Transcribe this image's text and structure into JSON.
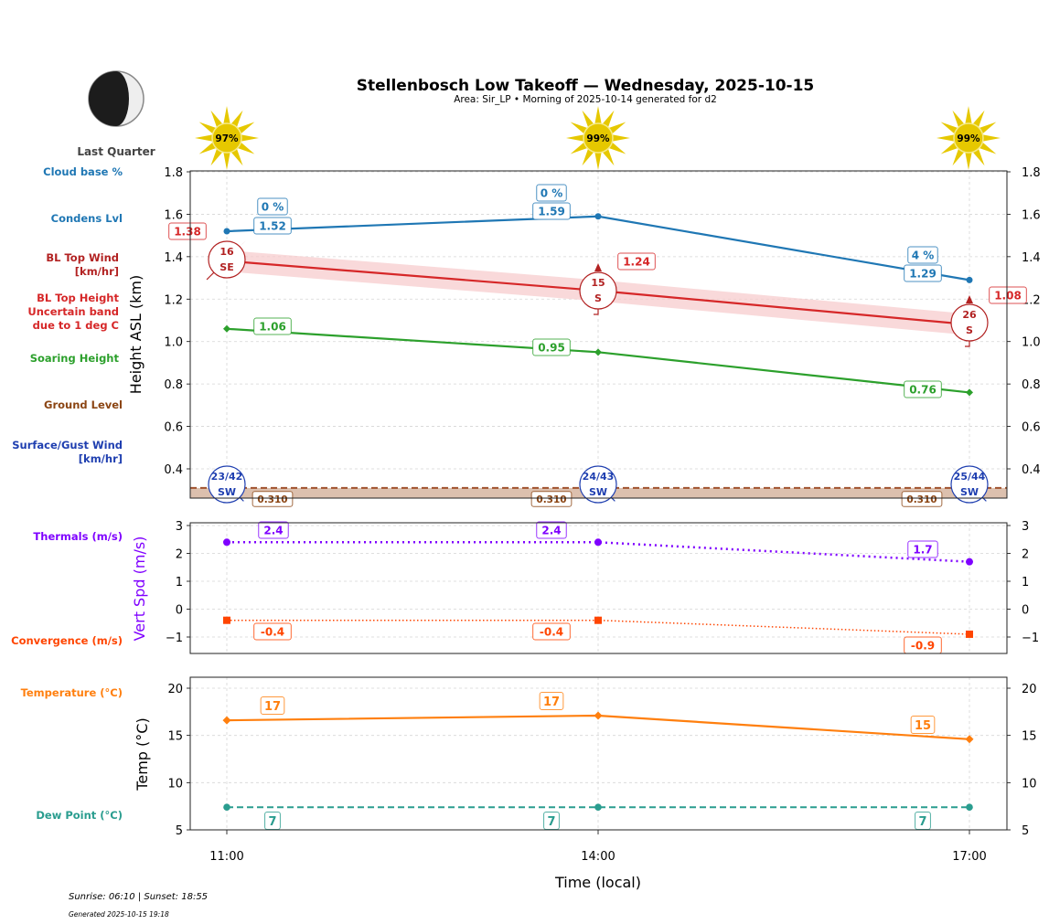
{
  "header": {
    "title": "Stellenbosch Low Takeoff — Wednesday, 2025-10-15",
    "subtitle": "Area: Sir_LP • Morning of 2025-10-14 generated for d2",
    "moon_phase": "Last Quarter",
    "moon_icon": "moon-last-quarter-icon"
  },
  "footer": {
    "sun_times": "Sunrise: 06:10 | Sunset: 18:55",
    "generated": "Generated 2025-10-15 19:18"
  },
  "colors": {
    "condens": "#1f77b4",
    "bltop": "#d62728",
    "bltop_band": "#f6c9cb",
    "soaring": "#2ca02c",
    "ground": "#8b4513",
    "ground_fill": "#dcc0ae",
    "surface_wind": "#1f3fb0",
    "thermals": "#7f00ff",
    "convergence": "#ff4500",
    "temperature": "#ff7f0e",
    "dewpoint": "#2a9d8f",
    "wind_top": "#b22222",
    "sun": "#e6c800"
  },
  "left_labels": {
    "cloud_base": "Cloud base %",
    "condens": "Condens Lvl",
    "bl_wind_1": "BL Top Wind",
    "bl_wind_2": "[km/hr]",
    "bl_height_1": "BL Top Height",
    "bl_height_2": "Uncertain band",
    "bl_height_3": "due to 1 deg C",
    "soaring": "Soaring Height",
    "ground": "Ground Level",
    "surface_1": "Surface/Gust Wind",
    "surface_2": "[km/hr]",
    "thermals": "Thermals (m/s)",
    "convergence": "Convergence (m/s)",
    "temperature": "Temperature (°C)",
    "dewpoint": "Dew Point (°C)"
  },
  "chart_data": [
    {
      "type": "line",
      "title": "Stellenbosch Low Takeoff — Wednesday, 2025-10-15",
      "xlabel": "",
      "ylabel": "Height ASL (km)",
      "x": [
        "11:00",
        "14:00",
        "17:00"
      ],
      "ylim": [
        0.26,
        1.8
      ],
      "yticks": [
        "1.8",
        "1.6",
        "1.4",
        "1.2",
        "1.0",
        "0.8",
        "0.6",
        "0.4"
      ],
      "ytick_values": [
        1.8,
        1.6,
        1.4,
        1.2,
        1.0,
        0.8,
        0.6,
        0.4
      ],
      "grid": true,
      "sun_percent": [
        "97%",
        "99%",
        "99%"
      ],
      "series": [
        {
          "name": "Condens Lvl",
          "values": [
            1.52,
            1.59,
            1.29
          ],
          "labels": [
            "1.52",
            "1.59",
            "1.29"
          ]
        },
        {
          "name": "Cloud base %",
          "labels": [
            "0 %",
            "0 %",
            "4 %"
          ]
        },
        {
          "name": "BL Top Height",
          "values": [
            1.38,
            1.24,
            1.08
          ],
          "labels": [
            "1.38",
            "1.24",
            "1.08"
          ],
          "band_width_km": 0.05
        },
        {
          "name": "Soaring Height",
          "values": [
            1.06,
            0.95,
            0.76
          ],
          "labels": [
            "1.06",
            "0.95",
            "0.76"
          ]
        },
        {
          "name": "Ground Level",
          "values": [
            0.31,
            0.31,
            0.31
          ],
          "labels": [
            "0.310",
            "0.310",
            "0.310"
          ]
        }
      ],
      "bl_top_wind": [
        {
          "speed": "16",
          "dir": "SE",
          "heading_deg": 315
        },
        {
          "speed": "15",
          "dir": "S",
          "heading_deg": 0
        },
        {
          "speed": "26",
          "dir": "S",
          "heading_deg": 0
        }
      ],
      "surface_wind": [
        {
          "speed": "23/42",
          "dir": "SW",
          "heading_deg": 45
        },
        {
          "speed": "24/43",
          "dir": "SW",
          "heading_deg": 45
        },
        {
          "speed": "25/44",
          "dir": "SW",
          "heading_deg": 45
        }
      ]
    },
    {
      "type": "line",
      "ylabel": "Vert Spd (m/s)",
      "x": [
        "11:00",
        "14:00",
        "17:00"
      ],
      "ylim": [
        -1.6,
        3.1
      ],
      "yticks": [
        "3",
        "2",
        "1",
        "0",
        "−1"
      ],
      "ytick_values": [
        3,
        2,
        1,
        0,
        -1
      ],
      "grid": true,
      "series": [
        {
          "name": "Thermals (m/s)",
          "values": [
            2.4,
            2.4,
            1.7
          ],
          "labels": [
            "2.4",
            "2.4",
            "1.7"
          ]
        },
        {
          "name": "Convergence (m/s)",
          "values": [
            -0.4,
            -0.4,
            -0.9
          ],
          "labels": [
            "-0.4",
            "-0.4",
            "-0.9"
          ]
        }
      ]
    },
    {
      "type": "line",
      "ylabel": "Temp (°C)",
      "xlabel": "Time (local)",
      "x": [
        "11:00",
        "14:00",
        "17:00"
      ],
      "ylim": [
        5,
        21.2
      ],
      "yticks": [
        "20",
        "15",
        "10",
        "5"
      ],
      "ytick_values": [
        20,
        15,
        10,
        5
      ],
      "grid": true,
      "series": [
        {
          "name": "Temperature (°C)",
          "values": [
            16.6,
            17.1,
            14.6
          ],
          "labels": [
            "17",
            "17",
            "15"
          ]
        },
        {
          "name": "Dew Point (°C)",
          "values": [
            7.4,
            7.4,
            7.4
          ],
          "labels": [
            "7",
            "7",
            "7"
          ]
        }
      ]
    }
  ]
}
